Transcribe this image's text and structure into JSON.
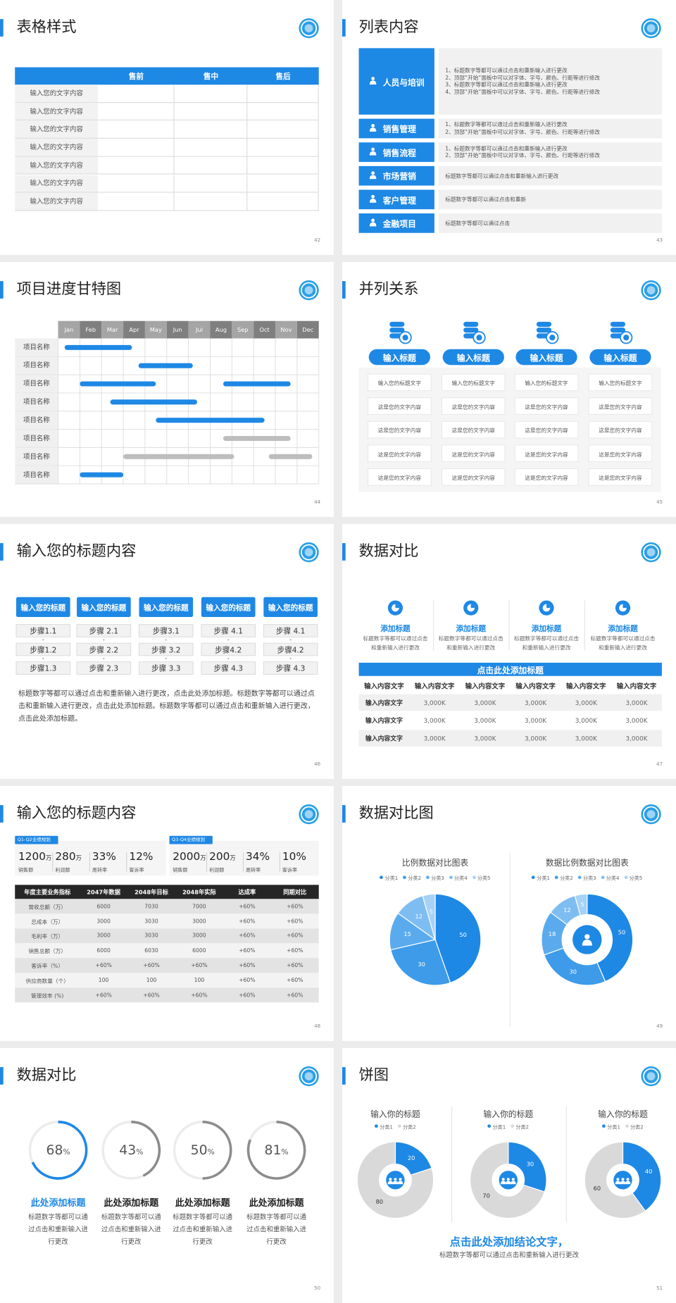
{
  "slides": [
    {
      "title": "表格样式",
      "page": "42",
      "table": {
        "columns": [
          "售前",
          "售中",
          "售后"
        ],
        "rows": [
          "输入您的文字内容",
          "输入您的文字内容",
          "输入您的文字内容",
          "输入您的文字内容",
          "输入您的文字内容",
          "输入您的文字内容",
          "输入您的文字内容"
        ]
      }
    },
    {
      "title": "列表内容",
      "page": "43",
      "items": [
        {
          "label": "人员与培训",
          "lines": [
            "1、标题数字等都可以通过点击和重新输入进行更改",
            "2、顶部“开始”面板中可以对字体、字号、颜色、行距等进行修改",
            "3、标题数字等都可以通过点击和重新输入进行更改",
            "4、顶部“开始”面板中可以对字体、字号、颜色、行距等进行修改"
          ]
        },
        {
          "label": "销售管理",
          "lines": [
            "1、标题数字等都可以通过点击和重新输入进行更改",
            "2、顶部“开始”面板中可以对字体、字号、颜色、行距等进行修改"
          ]
        },
        {
          "label": "销售流程",
          "lines": [
            "1、标题数字等都可以通过点击和重新输入进行更改",
            "2、顶部“开始”面板中可以对字体、字号、颜色、行距等进行修改"
          ]
        },
        {
          "label": "市场营销",
          "lines": [
            "标题数字等都可以通过点击和重新输入进行更改"
          ]
        },
        {
          "label": "客户管理",
          "lines": [
            "标题数字等都可以通过点击和重新"
          ]
        },
        {
          "label": "金融项目",
          "lines": [
            "标题数字等都可以通过点击"
          ]
        }
      ]
    },
    {
      "title": "项目进度甘特图",
      "page": "44",
      "chart": {
        "type": "gantt",
        "categories": [
          "Jan",
          "Feb",
          "Mar",
          "Apr",
          "May",
          "Jun",
          "Jul",
          "Aug",
          "Sep",
          "Oct",
          "Nov",
          "Dec"
        ],
        "xlim": [
          0,
          12
        ],
        "tasks": [
          {
            "name": "项目名称",
            "bars": [
              {
                "start": 0.3,
                "end": 3.4,
                "color": "#1e88e5"
              }
            ]
          },
          {
            "name": "项目名称",
            "bars": [
              {
                "start": 3.7,
                "end": 6.2,
                "color": "#1e88e5"
              }
            ]
          },
          {
            "name": "项目名称",
            "bars": [
              {
                "start": 1.0,
                "end": 4.5,
                "color": "#1e88e5"
              },
              {
                "start": 7.6,
                "end": 10.7,
                "color": "#1e88e5"
              }
            ]
          },
          {
            "name": "项目名称",
            "bars": [
              {
                "start": 2.4,
                "end": 6.4,
                "color": "#1e88e5"
              }
            ]
          },
          {
            "name": "项目名称",
            "bars": [
              {
                "start": 4.5,
                "end": 9.5,
                "color": "#1e88e5"
              }
            ]
          },
          {
            "name": "项目名称",
            "bars": [
              {
                "start": 7.6,
                "end": 10.7,
                "color": "#bdbdbd"
              }
            ]
          },
          {
            "name": "项目名称",
            "bars": [
              {
                "start": 3.0,
                "end": 8.1,
                "color": "#bdbdbd"
              },
              {
                "start": 9.7,
                "end": 11.7,
                "color": "#bdbdbd"
              }
            ]
          },
          {
            "name": "项目名称",
            "bars": [
              {
                "start": 1.0,
                "end": 3.0,
                "color": "#1e88e5"
              }
            ]
          }
        ]
      }
    },
    {
      "title": "并列关系",
      "page": "45",
      "columns": [
        {
          "heading": "输入标题",
          "items": [
            "输入您的标题文字",
            "这是您的文字内容",
            "这是您的文字内容",
            "这是您的文字内容",
            "这是您的文字内容"
          ]
        },
        {
          "heading": "输入标题",
          "items": [
            "输入您的标题文字",
            "这是您的文字内容",
            "这是您的文字内容",
            "这是您的文字内容",
            "这是您的文字内容"
          ]
        },
        {
          "heading": "输入标题",
          "items": [
            "输入您的标题文字",
            "这是您的文字内容",
            "这是您的文字内容",
            "这是您的文字内容",
            "这是您的文字内容"
          ]
        },
        {
          "heading": "输入标题",
          "items": [
            "输入您的标题文字",
            "这是您的文字内容",
            "这是您的文字内容",
            "这是您的文字内容",
            "这是您的文字内容"
          ]
        }
      ]
    },
    {
      "title": "输入您的标题内容",
      "page": "46",
      "columns": [
        {
          "heading": "输入您的标题",
          "steps": [
            "步骤1.1",
            "步骤1.2",
            "步骤1.3"
          ]
        },
        {
          "heading": "输入您的标题",
          "steps": [
            "步骤 2.1",
            "步骤 2.2",
            "步骤 2.3"
          ]
        },
        {
          "heading": "输入您的标题",
          "steps": [
            "步骤3.1",
            "步骤 3.2",
            "步骤 3.3"
          ]
        },
        {
          "heading": "输入您的标题",
          "steps": [
            "步骤 4.1",
            "步骤4.2",
            "步骤 4.3"
          ]
        },
        {
          "heading": "输入您的标题",
          "steps": [
            "步骤 4.1",
            "步骤4.2",
            "步骤 4.3"
          ]
        }
      ],
      "paragraph": "标题数字等都可以通过点击和重新输入进行更改，点击此处添加标题。标题数字等都可以通过点击和重新输入进行更改，点击此处添加标题。标题数字等都可以通过点击和重新输入进行更改，点击此处添加标题。"
    },
    {
      "title": "数据对比",
      "page": "47",
      "features": [
        {
          "heading": "添加标题",
          "text": "标题数字等都可以通过点击和重新输入进行更改"
        },
        {
          "heading": "添加标题",
          "text": "标题数字等都可以通过点击和重新输入进行更改"
        },
        {
          "heading": "添加标题",
          "text": "标题数字等都可以通过点击和重新输入进行更改"
        },
        {
          "heading": "添加标题",
          "text": "标题数字等都可以通过点击和重新输入进行更改"
        }
      ],
      "banner": "点击此处添加标题",
      "table": {
        "header": [
          "输入内容文字",
          "输入内容文字",
          "输入内容文字",
          "输入内容文字",
          "输入内容文字",
          "输入内容文字"
        ],
        "rows": [
          [
            "输入内容文字",
            "3,000K",
            "3,000K",
            "3,000K",
            "3,000K",
            "3,000K"
          ],
          [
            "输入内容文字",
            "3,000K",
            "3,000K",
            "3,000K",
            "3,000K",
            "3,000K"
          ],
          [
            "输入内容文字",
            "3,000K",
            "3,000K",
            "3,000K",
            "3,000K",
            "3,000K"
          ]
        ]
      }
    },
    {
      "title": "输入您的标题内容",
      "page": "48",
      "groups": [
        {
          "label": "Q1-Q2业绩规划",
          "stats": [
            {
              "value": "1200",
              "unit": "万",
              "label": "销售额"
            },
            {
              "value": "280",
              "unit": "万",
              "label": "利润额"
            },
            {
              "value": "33%",
              "label": "周转率"
            },
            {
              "value": "12%",
              "label": "客诉率"
            }
          ]
        },
        {
          "label": "Q3-Q4业绩规划",
          "stats": [
            {
              "value": "2000",
              "unit": "万",
              "label": "销售额"
            },
            {
              "value": "200",
              "unit": "万",
              "label": "利润额"
            },
            {
              "value": "34%",
              "label": "周转率"
            },
            {
              "value": "10%",
              "label": "客诉率"
            }
          ]
        }
      ],
      "table": {
        "header": [
          "年度主要业务指标",
          "2047年数据",
          "2048年目标",
          "2048年实际",
          "达成率",
          "同期对比"
        ],
        "rows": [
          [
            "营收总额（万）",
            "6000",
            "7030",
            "7000",
            "+60%",
            "+60%"
          ],
          [
            "总成本（万）",
            "3000",
            "3030",
            "3000",
            "+60%",
            "+60%"
          ],
          [
            "毛利率（万）",
            "3000",
            "3030",
            "3000",
            "+60%",
            "+60%"
          ],
          [
            "销售总额（万）",
            "6000",
            "6030",
            "6000",
            "+60%",
            "+60%"
          ],
          [
            "客诉率（%）",
            "+60%",
            "+60%",
            "+60%",
            "+60%",
            "+60%"
          ],
          [
            "供应商数量（个）",
            "100",
            "100",
            "100",
            "+60%",
            "+60%"
          ],
          [
            "管理效率 (%)",
            "+60%",
            "+60%",
            "+60%",
            "+60%",
            "+60%"
          ]
        ]
      }
    },
    {
      "title": "数据对比图",
      "page": "49",
      "charts": [
        {
          "type": "pie",
          "title": "比例数据对比图表",
          "categories": [
            "分类1",
            "分类2",
            "分类3",
            "分类4",
            "分类5"
          ],
          "values": [
            50,
            30,
            15,
            12,
            5
          ],
          "colors": [
            "#1e88e5",
            "#3d9be9",
            "#5aabee",
            "#7ebdf2",
            "#a6d2f6"
          ]
        },
        {
          "type": "donut",
          "title": "数据比例数据对比图表",
          "categories": [
            "分类1",
            "分类2",
            "分类3",
            "分类4",
            "分类5"
          ],
          "values": [
            50,
            30,
            18,
            12,
            5
          ],
          "colors": [
            "#1e88e5",
            "#3d9be9",
            "#5aabee",
            "#7ebdf2",
            "#a6d2f6"
          ]
        }
      ]
    },
    {
      "title": "数据对比",
      "page": "50",
      "ylim": [
        0,
        100
      ],
      "rings": [
        {
          "value": 68,
          "unit": "%",
          "color": "#1e88e5",
          "heading": "此处添加标题",
          "heading_color": "#1e88e5",
          "text": "标题数字等都可以通过点击和重新输入进行更改"
        },
        {
          "value": 43,
          "unit": "%",
          "color": "#8c8c8c",
          "heading": "此处添加标题",
          "heading_color": "#222222",
          "text": "标题数字等都可以通过点击和重新输入进行更改"
        },
        {
          "value": 50,
          "unit": "%",
          "color": "#8c8c8c",
          "heading": "此处添加标题",
          "heading_color": "#222222",
          "text": "标题数字等都可以通过点击和重新输入进行更改"
        },
        {
          "value": 81,
          "unit": "%",
          "color": "#8c8c8c",
          "heading": "此处添加标题",
          "heading_color": "#222222",
          "text": "标题数字等都可以通过点击和重新输入进行更改"
        }
      ]
    },
    {
      "title": "饼图",
      "page": "51",
      "charts": [
        {
          "type": "donut",
          "title": "输入你的标题",
          "categories": [
            "分类1",
            "分类2"
          ],
          "values": [
            20,
            80
          ],
          "colors": [
            "#1e88e5",
            "#d9d9d9"
          ]
        },
        {
          "type": "donut",
          "title": "输入你的标题",
          "categories": [
            "分类1",
            "分类2"
          ],
          "values": [
            30,
            70
          ],
          "colors": [
            "#1e88e5",
            "#d9d9d9"
          ]
        },
        {
          "type": "donut",
          "title": "输入你的标题",
          "categories": [
            "分类1",
            "分类2"
          ],
          "values": [
            40,
            60
          ],
          "colors": [
            "#1e88e5",
            "#d9d9d9"
          ]
        }
      ],
      "conclusion": "点击此处添加结论文字，",
      "note": "标题数字等都可以通过点击和重新输入进行更改"
    }
  ]
}
